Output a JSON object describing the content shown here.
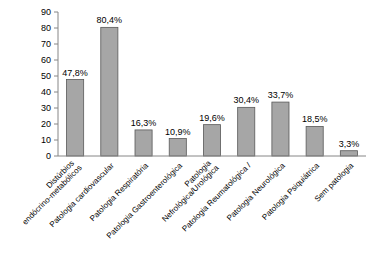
{
  "chart_data": {
    "type": "bar",
    "categories": [
      "Distúrbios endócrino-metabólicos",
      "Patologia cardiovascular",
      "Patologia Respiratória",
      "Patologia Gastroenterológica",
      "Patologia Nefrológica/Urológica",
      "Patologia Reumatológica /",
      "Patologia Neurológica",
      "Patologia Psiquiátrica",
      "Sem patologia"
    ],
    "values": [
      47.8,
      80.4,
      16.3,
      10.9,
      19.6,
      30.4,
      33.7,
      18.5,
      3.3
    ],
    "value_labels": [
      "47,8%",
      "80,4%",
      "16,3%",
      "10,9%",
      "19,6%",
      "30,4%",
      "33,7%",
      "18,5%",
      "3,3%"
    ],
    "data_labels": true,
    "color": "#a6a6a6",
    "ylim": [
      0,
      90
    ],
    "yticks": [
      0,
      10,
      20,
      30,
      40,
      50,
      60,
      70,
      80,
      90
    ],
    "grid": false
  }
}
